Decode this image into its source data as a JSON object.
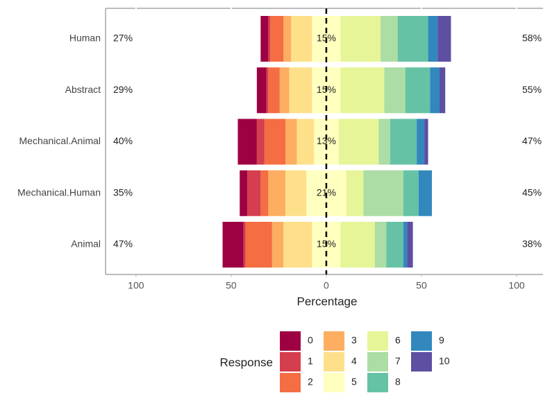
{
  "chart_data": {
    "type": "diverging_bar",
    "x_label": "Percentage",
    "legend_title": "Response",
    "categories": [
      "Human",
      "Abstract",
      "Mechanical.Animal",
      "Mechanical.Human",
      "Animal"
    ],
    "neutral_series": 5,
    "series": [
      {
        "name": "0",
        "color": "#9E0142",
        "values": [
          4,
          5,
          10,
          4,
          11
        ]
      },
      {
        "name": "1",
        "color": "#D53E4F",
        "values": [
          1,
          1,
          4,
          7,
          1
        ]
      },
      {
        "name": "2",
        "color": "#F46D43",
        "values": [
          7,
          6,
          11,
          4,
          14
        ]
      },
      {
        "name": "3",
        "color": "#FDAE61",
        "values": [
          4,
          5,
          6,
          9,
          6
        ]
      },
      {
        "name": "4",
        "color": "#FEE08B",
        "values": [
          11,
          12,
          9,
          11,
          15
        ]
      },
      {
        "name": "5",
        "color": "#FFFFBF",
        "values": [
          15,
          15,
          13,
          21,
          15
        ]
      },
      {
        "name": "6",
        "color": "#E6F598",
        "values": [
          21,
          23,
          21,
          9,
          18
        ]
      },
      {
        "name": "7",
        "color": "#ABDDA4",
        "values": [
          9,
          11,
          6,
          21,
          6
        ]
      },
      {
        "name": "8",
        "color": "#66C2A5",
        "values": [
          16,
          13,
          14,
          8,
          9
        ]
      },
      {
        "name": "9",
        "color": "#3288BD",
        "values": [
          5,
          5,
          4,
          7,
          2
        ]
      },
      {
        "name": "10",
        "color": "#5E4FA2",
        "values": [
          7,
          3,
          2,
          0,
          3
        ]
      }
    ],
    "left_totals": {
      "values": [
        27,
        29,
        40,
        35,
        47
      ],
      "value_labels": [
        "27%",
        "29%",
        "40%",
        "35%",
        "47%"
      ]
    },
    "neutral_totals": {
      "values": [
        15,
        15,
        13,
        21,
        15
      ],
      "value_labels": [
        "15%",
        "15%",
        "13%",
        "21%",
        "15%"
      ]
    },
    "right_totals": {
      "values": [
        58,
        55,
        47,
        45,
        38
      ],
      "value_labels": [
        "58%",
        "55%",
        "47%",
        "45%",
        "38%"
      ]
    },
    "xlim": [
      -116,
      113.5
    ],
    "xticks": [
      {
        "value": -100,
        "label": "100"
      },
      {
        "value": -50,
        "label": "50"
      },
      0,
      50,
      {
        "value": 100,
        "label": "100"
      }
    ]
  }
}
